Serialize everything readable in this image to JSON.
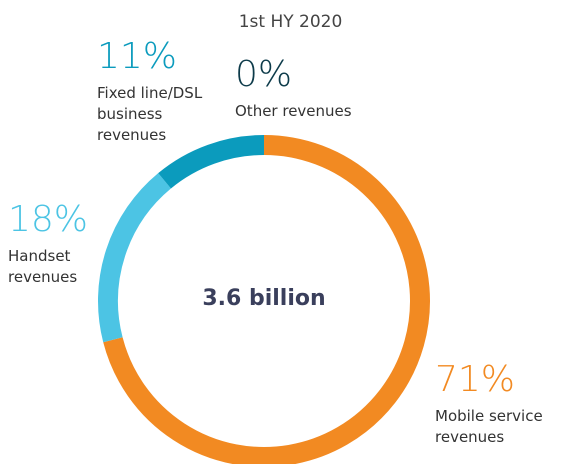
{
  "chart_data": {
    "type": "donut",
    "title": "1st HY 2020",
    "center_label": "3.6 billion",
    "categories": [
      "Mobile service revenues",
      "Handset revenues",
      "Fixed line/DSL business revenues",
      "Other revenues"
    ],
    "values": [
      71,
      18,
      11,
      0
    ],
    "value_labels": [
      "71%",
      "18%",
      "11%",
      "0%"
    ],
    "colors": [
      "#f28a22",
      "#4cc4e4",
      "#0b9bbd",
      "#0d3b4a"
    ]
  }
}
